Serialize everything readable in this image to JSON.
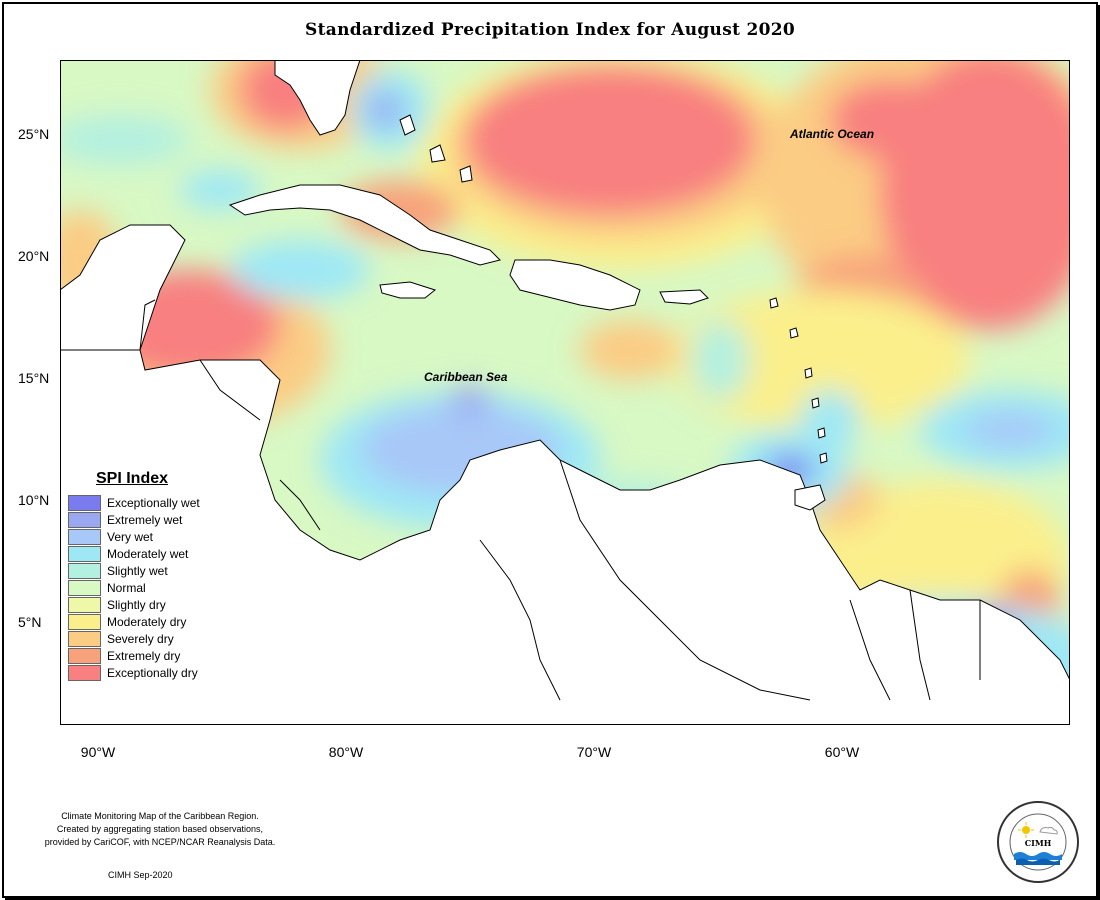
{
  "title": "Standardized Precipitation Index for August 2020",
  "map": {
    "lat_labels": [
      "25°N",
      "20°N",
      "15°N",
      "10°N",
      "5°N"
    ],
    "lon_labels": [
      "90°W",
      "80°W",
      "70°W",
      "60°W"
    ],
    "ocean_labels": {
      "atlantic": "Atlantic Ocean",
      "caribbean": "Caribbean Sea"
    }
  },
  "legend": {
    "title": "SPI Index",
    "items": [
      {
        "label": "Exceptionally wet",
        "color": "#7b7bf0"
      },
      {
        "label": "Extremely wet",
        "color": "#9aa8f2"
      },
      {
        "label": "Very wet",
        "color": "#a8c8f8"
      },
      {
        "label": "Moderately wet",
        "color": "#9ee8f6"
      },
      {
        "label": "Slightly wet",
        "color": "#b4f0e0"
      },
      {
        "label": "Normal",
        "color": "#d8f8c4"
      },
      {
        "label": "Slightly dry",
        "color": "#eef8a8"
      },
      {
        "label": "Moderately dry",
        "color": "#fbef8c"
      },
      {
        "label": "Severely dry",
        "color": "#fbcc84"
      },
      {
        "label": "Extremely dry",
        "color": "#f8a27c"
      },
      {
        "label": "Exceptionally dry",
        "color": "#f88080"
      }
    ]
  },
  "credit": {
    "line1": "Climate Monitoring Map of the Caribbean Region.",
    "line2": "Created by aggregating station based observations,",
    "line3": "provided by CariCOF, with NCEP/NCAR Reanalysis Data.",
    "date": "CIMH Sep-2020"
  },
  "logo": {
    "text": "CIMH"
  }
}
